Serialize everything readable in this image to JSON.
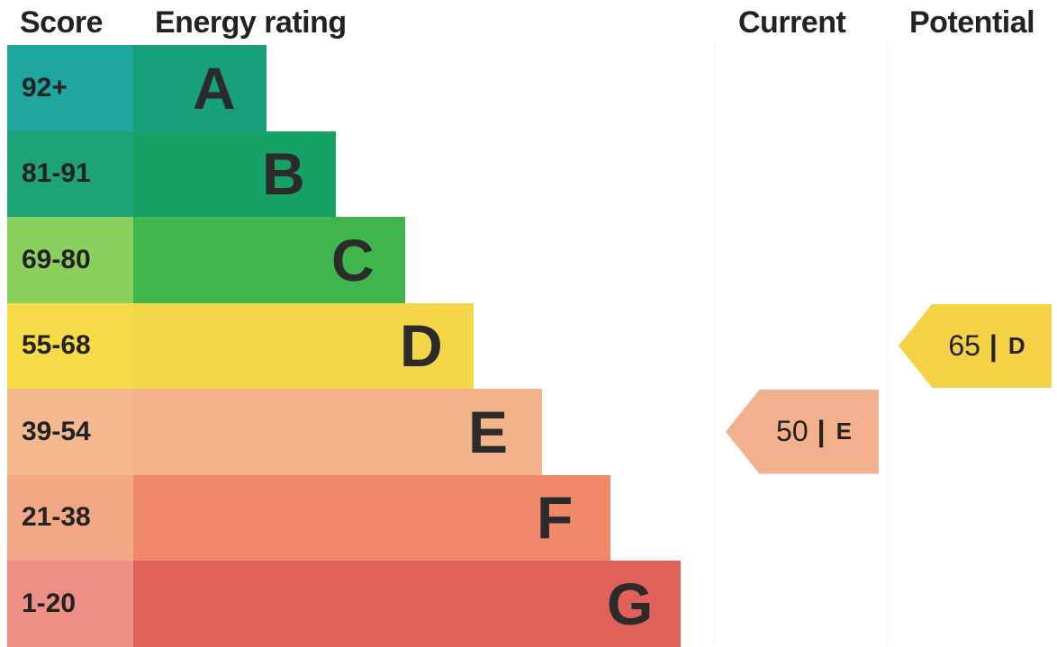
{
  "headers": {
    "score": "Score",
    "rating": "Energy rating",
    "current": "Current",
    "potential": "Potential"
  },
  "chart_data": {
    "type": "bar",
    "bands": [
      {
        "score": "92+",
        "letter": "A",
        "color_left": "#1fa6a1",
        "color_bar": "#17a07a"
      },
      {
        "score": "81-91",
        "letter": "B",
        "color_left": "#1ea277",
        "color_bar": "#17a265"
      },
      {
        "score": "69-80",
        "letter": "C",
        "color_left": "#8bcf5c",
        "color_bar": "#40b54b"
      },
      {
        "score": "55-68",
        "letter": "D",
        "color_left": "#f7dc47",
        "color_bar": "#f5d648"
      },
      {
        "score": "39-54",
        "letter": "E",
        "color_left": "#f3b88e",
        "color_bar": "#f2b38a"
      },
      {
        "score": "21-38",
        "letter": "F",
        "color_left": "#f2a884",
        "color_bar": "#f0896a"
      },
      {
        "score": "1-20",
        "letter": "G",
        "color_left": "#ee8f86",
        "color_bar": "#e0605a"
      }
    ],
    "current": {
      "value": 50,
      "letter": "E",
      "color": "#f2b08c",
      "sep": "|"
    },
    "potential": {
      "value": 65,
      "letter": "D",
      "color": "#f5d245",
      "sep": "|"
    }
  }
}
